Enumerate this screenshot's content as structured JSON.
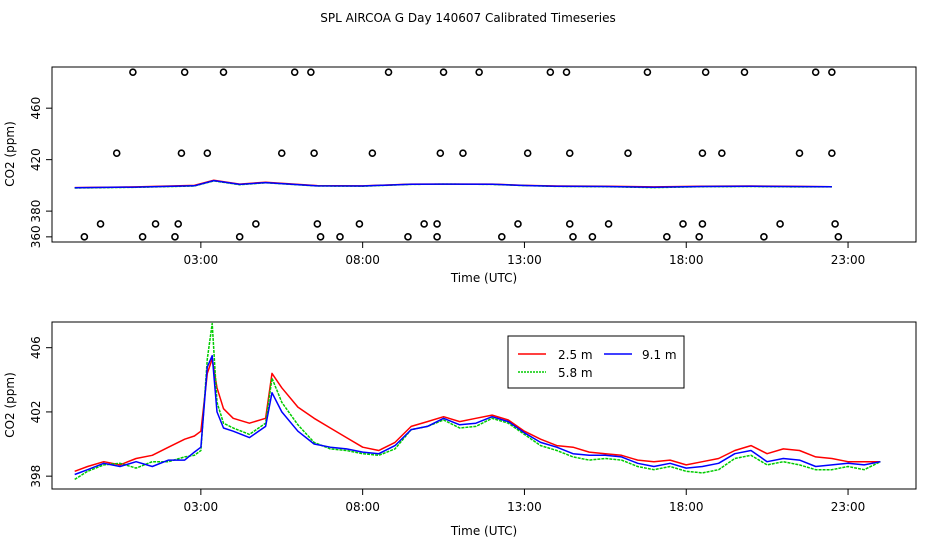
{
  "title": "SPL AIRCOA G  Day 140607  Calibrated Timeseries",
  "colors": {
    "s25": "#ff0000",
    "s58": "#00cc00",
    "s91": "#0000ff",
    "axis": "#000000"
  },
  "chart_data": [
    {
      "id": "top",
      "type": "scatter",
      "xlabel": "Time (UTC)",
      "ylabel": "CO2 (ppm)",
      "xlim": [
        -1.6,
        25.1
      ],
      "ylim": [
        356,
        492
      ],
      "xtick_values": [
        3,
        8,
        13,
        18,
        23
      ],
      "xtick_labels": [
        "03:00",
        "08:00",
        "13:00",
        "18:00",
        "23:00"
      ],
      "ytick_values": [
        360,
        380,
        420,
        460
      ],
      "ytick_labels": [
        "360",
        "380",
        "420",
        "460"
      ],
      "marker": "open-circle",
      "points": [
        [
          -0.6,
          360
        ],
        [
          -0.1,
          370
        ],
        [
          0.4,
          425
        ],
        [
          0.9,
          488
        ],
        [
          1.2,
          360
        ],
        [
          1.6,
          370
        ],
        [
          2.2,
          360
        ],
        [
          2.3,
          370
        ],
        [
          2.4,
          425
        ],
        [
          2.5,
          488
        ],
        [
          3.2,
          425
        ],
        [
          3.7,
          488
        ],
        [
          4.2,
          360
        ],
        [
          4.7,
          370
        ],
        [
          5.5,
          425
        ],
        [
          5.9,
          488
        ],
        [
          6.4,
          488
        ],
        [
          6.5,
          425
        ],
        [
          6.6,
          370
        ],
        [
          6.7,
          360
        ],
        [
          7.3,
          360
        ],
        [
          7.9,
          370
        ],
        [
          8.3,
          425
        ],
        [
          8.8,
          488
        ],
        [
          9.4,
          360
        ],
        [
          9.9,
          370
        ],
        [
          10.3,
          360
        ],
        [
          10.3,
          370
        ],
        [
          10.4,
          425
        ],
        [
          10.5,
          488
        ],
        [
          11.1,
          425
        ],
        [
          11.6,
          488
        ],
        [
          12.3,
          360
        ],
        [
          12.8,
          370
        ],
        [
          13.1,
          425
        ],
        [
          13.8,
          488
        ],
        [
          14.3,
          488
        ],
        [
          14.4,
          425
        ],
        [
          14.4,
          370
        ],
        [
          14.5,
          360
        ],
        [
          15.1,
          360
        ],
        [
          15.6,
          370
        ],
        [
          16.2,
          425
        ],
        [
          16.8,
          488
        ],
        [
          17.4,
          360
        ],
        [
          17.9,
          370
        ],
        [
          18.4,
          360
        ],
        [
          18.5,
          370
        ],
        [
          18.5,
          425
        ],
        [
          18.6,
          488
        ],
        [
          19.1,
          425
        ],
        [
          19.8,
          488
        ],
        [
          20.4,
          360
        ],
        [
          20.9,
          370
        ],
        [
          21.5,
          425
        ],
        [
          22.0,
          488
        ],
        [
          22.5,
          488
        ],
        [
          22.5,
          425
        ],
        [
          22.6,
          370
        ],
        [
          22.7,
          360
        ]
      ],
      "series": [
        {
          "name": "2.5 m",
          "x": [
            -0.9,
            1,
            2.8,
            3.4,
            4.2,
            5,
            6.6,
            8,
            9.5,
            10.5,
            12,
            13,
            14,
            15.5,
            17,
            18.5,
            20,
            21,
            22.5
          ],
          "values": [
            398.3,
            398.8,
            400,
            404,
            401,
            402.5,
            399.8,
            399.6,
            401,
            401,
            401,
            400,
            399.5,
            399.3,
            398.8,
            399.3,
            399.5,
            399.3,
            399
          ]
        },
        {
          "name": "5.8 m",
          "x": [
            -0.9,
            1,
            2.8,
            3.4,
            4.2,
            5,
            6.6,
            8,
            9.5,
            10.5,
            12,
            13,
            14,
            15.5,
            17,
            18.5,
            20,
            21,
            22.5
          ],
          "values": [
            398,
            398.5,
            399.5,
            403.5,
            400.5,
            402,
            399.5,
            399.4,
            400.8,
            401,
            400.8,
            399.8,
            399.2,
            399,
            398.3,
            399,
            399.1,
            398.9,
            398.8
          ]
        },
        {
          "name": "9.1 m",
          "x": [
            -0.9,
            1,
            2.8,
            3.4,
            4.2,
            5,
            6.6,
            8,
            9.5,
            10.5,
            12,
            13,
            14,
            15.5,
            17,
            18.5,
            20,
            21,
            22.5
          ],
          "values": [
            398.2,
            398.7,
            399.7,
            403.7,
            400.8,
            402.2,
            399.6,
            399.5,
            400.9,
            401,
            400.9,
            399.9,
            399.3,
            399.1,
            398.5,
            399.1,
            399.3,
            399.1,
            398.9
          ]
        }
      ]
    },
    {
      "id": "bottom",
      "type": "line",
      "xlabel": "Time (UTC)",
      "ylabel": "CO2 (ppm)",
      "xlim": [
        -1.6,
        25.1
      ],
      "ylim": [
        397.2,
        407.6
      ],
      "xtick_values": [
        3,
        8,
        13,
        18,
        23
      ],
      "xtick_labels": [
        "03:00",
        "08:00",
        "13:00",
        "18:00",
        "23:00"
      ],
      "ytick_values": [
        398,
        402,
        406
      ],
      "ytick_labels": [
        "398",
        "402",
        "406"
      ],
      "legend": {
        "position": "top-center",
        "entries": [
          "2.5 m",
          "5.8 m",
          "9.1 m"
        ]
      },
      "x": [
        -0.9,
        -0.5,
        0,
        0.5,
        1,
        1.5,
        2,
        2.5,
        2.8,
        3,
        3.2,
        3.35,
        3.5,
        3.7,
        4,
        4.5,
        5,
        5.2,
        5.5,
        6,
        6.5,
        7,
        7.5,
        8,
        8.5,
        9,
        9.5,
        10,
        10.5,
        11,
        11.5,
        12,
        12.5,
        13,
        13.5,
        14,
        14.5,
        15,
        15.5,
        16,
        16.5,
        17,
        17.5,
        18,
        18.5,
        19,
        19.5,
        20,
        20.5,
        21,
        21.5,
        22,
        22.5,
        23,
        23.5,
        24
      ],
      "series": [
        {
          "name": "2.5 m",
          "color_key": "s25",
          "values": [
            398.3,
            398.6,
            398.9,
            398.7,
            399.1,
            399.3,
            399.8,
            400.3,
            400.5,
            400.8,
            404.4,
            405.3,
            403.5,
            402.2,
            401.6,
            401.3,
            401.6,
            404.4,
            403.5,
            402.3,
            401.6,
            401.0,
            400.4,
            399.8,
            399.6,
            400.1,
            401.1,
            401.4,
            401.7,
            401.4,
            401.6,
            401.8,
            401.5,
            400.8,
            400.3,
            399.9,
            399.8,
            399.5,
            399.4,
            399.3,
            399.0,
            398.9,
            399.0,
            398.7,
            398.9,
            399.1,
            399.6,
            399.9,
            399.4,
            399.7,
            399.6,
            399.2,
            399.1,
            398.9,
            398.9,
            398.9
          ]
        },
        {
          "name": "5.8 m",
          "color_key": "s58",
          "values": [
            397.8,
            398.3,
            398.7,
            398.8,
            398.5,
            398.9,
            398.9,
            399.2,
            399.3,
            399.6,
            405.3,
            407.5,
            402.6,
            401.3,
            401.0,
            400.6,
            401.3,
            404.1,
            402.6,
            401.2,
            400.1,
            399.7,
            399.6,
            399.4,
            399.3,
            399.7,
            400.9,
            401.1,
            401.5,
            401.0,
            401.1,
            401.6,
            401.3,
            400.6,
            399.9,
            399.6,
            399.2,
            399.0,
            399.1,
            399.0,
            398.6,
            398.4,
            398.6,
            398.3,
            398.2,
            398.4,
            399.1,
            399.3,
            398.7,
            398.9,
            398.7,
            398.4,
            398.4,
            398.6,
            398.4,
            398.9
          ]
        },
        {
          "name": "9.1 m",
          "color_key": "s91",
          "values": [
            398.1,
            398.4,
            398.8,
            398.6,
            398.9,
            398.6,
            399.0,
            399.0,
            399.5,
            399.8,
            404.8,
            405.5,
            402.0,
            401.0,
            400.8,
            400.4,
            401.1,
            403.2,
            402.0,
            400.8,
            400.0,
            399.8,
            399.7,
            399.5,
            399.4,
            399.9,
            400.9,
            401.1,
            401.6,
            401.2,
            401.3,
            401.7,
            401.4,
            400.7,
            400.1,
            399.8,
            399.4,
            399.3,
            399.3,
            399.2,
            398.8,
            398.6,
            398.8,
            398.5,
            398.6,
            398.8,
            399.4,
            399.6,
            398.9,
            399.1,
            399.0,
            398.6,
            398.7,
            398.8,
            398.7,
            398.9
          ]
        }
      ]
    }
  ]
}
